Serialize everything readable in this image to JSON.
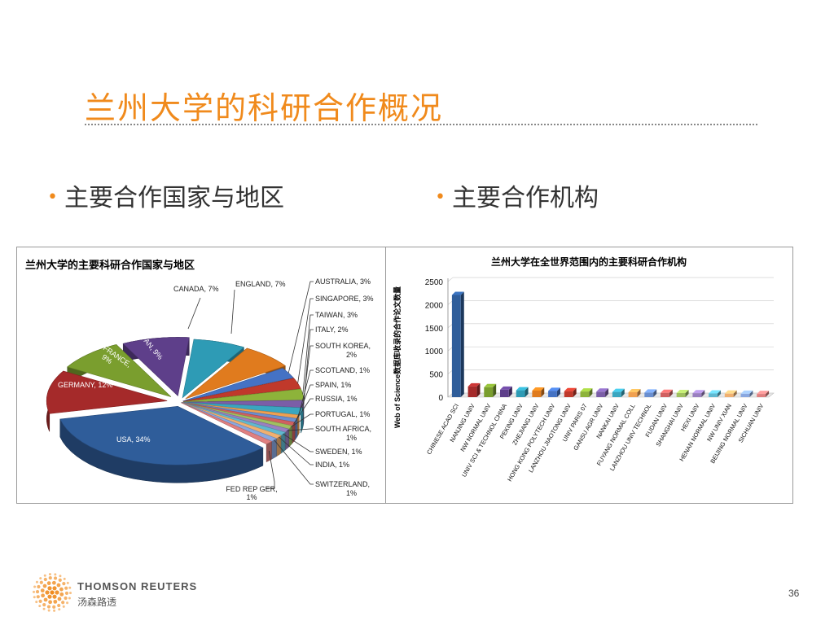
{
  "slide": {
    "title": "兰州大学的科研合作概况",
    "bullets": [
      "主要合作国家与地区",
      "主要合作机构"
    ],
    "page_number": "36",
    "brand_en": "THOMSON REUTERS",
    "brand_cn": "汤森路透"
  },
  "chart_data": [
    {
      "type": "pie",
      "title": "兰州大学的主要科研合作国家与地区",
      "slices": [
        {
          "label": "USA, 34%",
          "value": 34,
          "color": "#2f5d9a"
        },
        {
          "label": "GERMANY, 12%",
          "value": 12,
          "color": "#a52a2a"
        },
        {
          "label": "FRANCE, 9%",
          "value": 9,
          "color": "#7a9e2e"
        },
        {
          "label": "JAPAN, 9%",
          "value": 9,
          "color": "#5e3f8a"
        },
        {
          "label": "CANADA, 7%",
          "value": 7,
          "color": "#2e9bb5"
        },
        {
          "label": "ENGLAND, 7%",
          "value": 7,
          "color": "#e07b1e"
        },
        {
          "label": "AUSTRALIA, 3%",
          "value": 3,
          "color": "#4472c4"
        },
        {
          "label": "SINGAPORE, 3%",
          "value": 3,
          "color": "#c0392b"
        },
        {
          "label": "TAIWAN, 3%",
          "value": 3,
          "color": "#8db33a"
        },
        {
          "label": "ITALY, 2%",
          "value": 2,
          "color": "#7b5ea7"
        },
        {
          "label": "SOUTH KOREA, 2%",
          "value": 2,
          "color": "#3aa6c0"
        },
        {
          "label": "SCOTLAND, 1%",
          "value": 1,
          "color": "#f0a050"
        },
        {
          "label": "SPAIN, 1%",
          "value": 1,
          "color": "#6a8fd0"
        },
        {
          "label": "RUSSIA, 1%",
          "value": 1,
          "color": "#d06060"
        },
        {
          "label": "PORTUGAL, 1%",
          "value": 1,
          "color": "#a0c060"
        },
        {
          "label": "SOUTH AFRICA, 1%",
          "value": 1,
          "color": "#9a80c0"
        },
        {
          "label": "SWEDEN, 1%",
          "value": 1,
          "color": "#60b8d0"
        },
        {
          "label": "INDIA, 1%",
          "value": 1,
          "color": "#f0b070"
        },
        {
          "label": "SWITZERLAND, 1%",
          "value": 1,
          "color": "#8aa8e0"
        },
        {
          "label": "FED REP GER, 1%",
          "value": 1,
          "color": "#e08080"
        }
      ]
    },
    {
      "type": "bar",
      "title": "兰州大学在全世界范围内的主要科研合作机构",
      "ylabel": "Web of Science数据库收录的合作论文数量",
      "ylim": [
        0,
        2500
      ],
      "yticks": [
        0,
        500,
        1000,
        1500,
        2000,
        2500
      ],
      "categories": [
        "CHINESE ACAD SCI",
        "NANJING UNIV",
        "NW NORMAL UNIV",
        "UNIV SCI & TECHNOL CHINA",
        "PEKING UNIV",
        "ZHEJIANG UNIV",
        "HONG KONG POLYTECH UNIV",
        "LANZHOU JIAOTONG UNIV",
        "UNIV PARIS 07",
        "GANSU AGR UNIV",
        "NANKAI UNIV",
        "FUYANG NORMAL COLL",
        "LANZHOU UNIV TECHNOL",
        "FUDAN UNIV",
        "SHANGHAI UNIV",
        "HEXI UNIV",
        "HENAN NORMAL UNIV",
        "NW UNIV XIAN",
        "BEIJING NORMAL UNIV",
        "SICHUAN UNIV"
      ],
      "values": [
        2210,
        230,
        215,
        160,
        148,
        140,
        135,
        128,
        122,
        118,
        112,
        105,
        98,
        92,
        88,
        84,
        80,
        76,
        72,
        68
      ],
      "colors": [
        "#2f5d9a",
        "#a52a2a",
        "#7a9e2e",
        "#5e3f8a",
        "#2e9bb5",
        "#e07b1e",
        "#4472c4",
        "#c0392b",
        "#8db33a",
        "#7b5ea7",
        "#3aa6c0",
        "#f0a050",
        "#6a8fd0",
        "#d06060",
        "#a0c060",
        "#9a80c0",
        "#60b8d0",
        "#f0b070",
        "#8aa8e0",
        "#e08080"
      ]
    }
  ]
}
